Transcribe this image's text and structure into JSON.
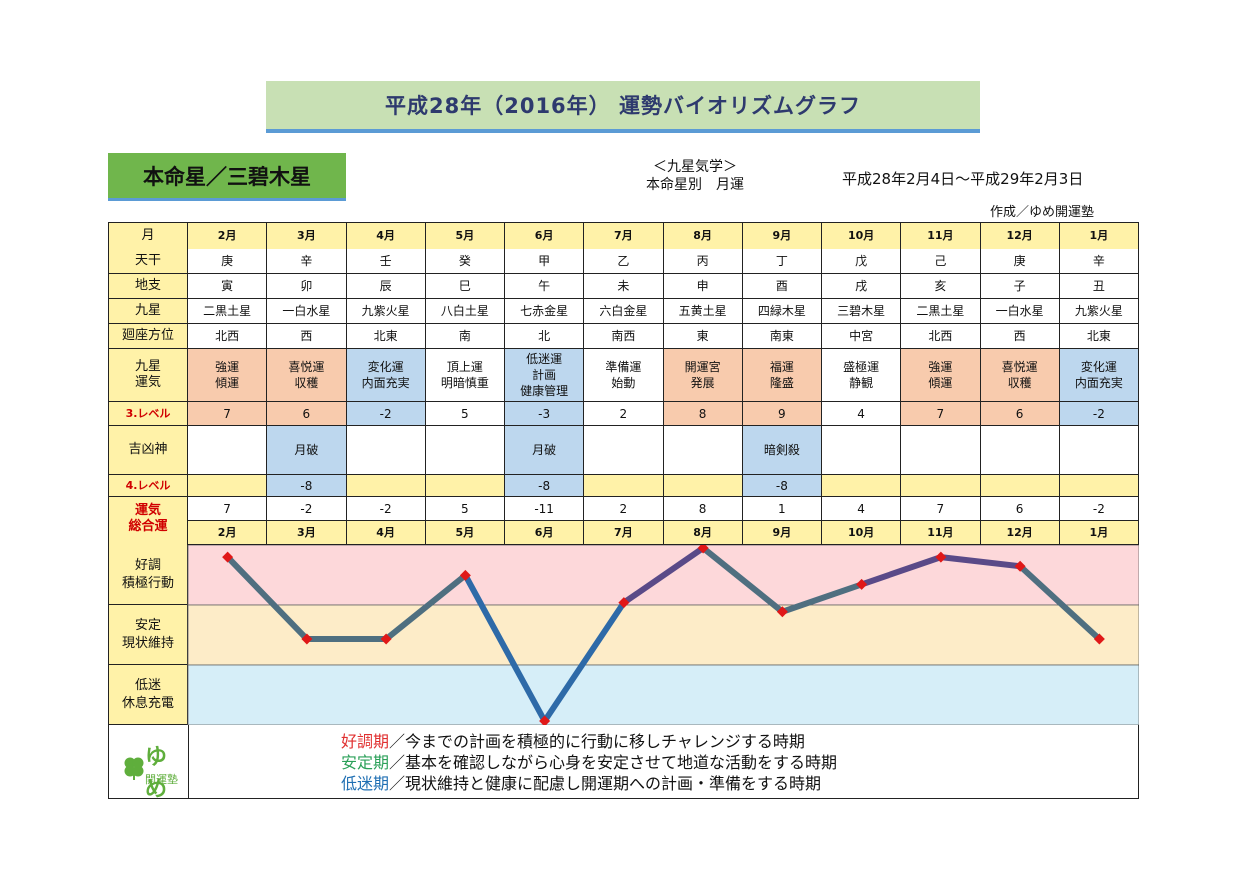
{
  "title": "平成28年（2016年） 運勢バイオリズムグラフ",
  "honmeisei": "本命星／三碧木星",
  "kyusei_label": {
    "line1": "＜九星気学＞",
    "line2": "本命星別　月運"
  },
  "date_range": "平成28年2月4日～平成29年2月3日",
  "author": "作成／ゆめ開運塾",
  "row_labels": {
    "month": "月",
    "tenkan": "天干",
    "chishi": "地支",
    "kyusei": "九星",
    "houi": "廻座方位",
    "unki": "九星\n運気",
    "level3": "3.レベル",
    "kikkyo": "吉凶神",
    "level4": "4.レベル",
    "sogo": "運気\n総合運"
  },
  "months": [
    "2月",
    "3月",
    "4月",
    "5月",
    "6月",
    "7月",
    "8月",
    "9月",
    "10月",
    "11月",
    "12月",
    "1月"
  ],
  "tenkan": [
    "庚",
    "辛",
    "壬",
    "癸",
    "甲",
    "乙",
    "丙",
    "丁",
    "戊",
    "己",
    "庚",
    "辛"
  ],
  "chishi": [
    "寅",
    "卯",
    "辰",
    "巳",
    "午",
    "未",
    "申",
    "酉",
    "戌",
    "亥",
    "子",
    "丑"
  ],
  "kyusei": [
    "二黒土星",
    "一白水星",
    "九紫火星",
    "八白土星",
    "七赤金星",
    "六白金星",
    "五黄土星",
    "四緑木星",
    "三碧木星",
    "二黒土星",
    "一白水星",
    "九紫火星"
  ],
  "houi": [
    "北西",
    "西",
    "北東",
    "南",
    "北",
    "南西",
    "東",
    "南東",
    "中宮",
    "北西",
    "西",
    "北東"
  ],
  "unki": [
    "強運\n傾運",
    "喜悦運\n収穫",
    "変化運\n内面充実",
    "頂上運\n明暗慎重",
    "低迷運\n計画\n健康管理",
    "準備運\n始動",
    "開運宮\n発展",
    "福運\n隆盛",
    "盛極運\n静観",
    "強運\n傾運",
    "喜悦運\n収穫",
    "変化運\n内面充実"
  ],
  "unki_color": [
    "pink",
    "pink",
    "blue",
    "white",
    "blue",
    "white",
    "pink",
    "pink",
    "white",
    "pink",
    "pink",
    "blue"
  ],
  "level3": [
    "7",
    "6",
    "-2",
    "5",
    "-3",
    "2",
    "8",
    "9",
    "4",
    "7",
    "6",
    "-2"
  ],
  "kikkyo": [
    "",
    "月破",
    "",
    "",
    "月破",
    "",
    "",
    "暗剣殺",
    "",
    "",
    "",
    ""
  ],
  "kikkyo_color": [
    "white",
    "blue",
    "white",
    "white",
    "blue",
    "white",
    "white",
    "blue",
    "white",
    "white",
    "white",
    "white"
  ],
  "level4": [
    "",
    "-8",
    "",
    "",
    "-8",
    "",
    "",
    "-8",
    "",
    "",
    "",
    ""
  ],
  "level4_color": [
    "yellow",
    "blue",
    "yellow",
    "yellow",
    "blue",
    "yellow",
    "yellow",
    "blue",
    "yellow",
    "yellow",
    "yellow",
    "yellow"
  ],
  "sogo": [
    "7",
    "-2",
    "-2",
    "5",
    "-11",
    "2",
    "8",
    "1",
    "4",
    "7",
    "6",
    "-2"
  ],
  "zones": [
    {
      "label": "好調\n積極行動",
      "color": "#fdd8da"
    },
    {
      "label": "安定\n現状維持",
      "color": "#fdecc8"
    },
    {
      "label": "低迷\n休息充電",
      "color": "#d6eef8"
    }
  ],
  "chart_data": {
    "type": "line",
    "x": [
      "2月",
      "3月",
      "4月",
      "5月",
      "6月",
      "7月",
      "8月",
      "9月",
      "10月",
      "11月",
      "12月",
      "1月"
    ],
    "series": [
      {
        "values": [
          7,
          -2,
          -2,
          5,
          -11,
          2,
          8,
          1,
          4,
          7,
          6,
          -2
        ]
      }
    ],
    "ylim": [
      -11,
      8
    ],
    "line_color": "#5a4a88",
    "marker_color": "#e01818"
  },
  "legend": [
    {
      "kw": "好調期",
      "text": "／今までの計画を積極的に行動に移しチャレンジする時期"
    },
    {
      "kw": "安定期",
      "text": "／基本を確認しながら心身を安定させて地道な活動をする時期"
    },
    {
      "kw": "低迷期",
      "text": "／現状維持と健康に配慮し開運期への計画・準備をする時期"
    }
  ],
  "logo": {
    "yume": "ゆめ",
    "juku": "開運塾",
    "icon": "clover-icon"
  }
}
